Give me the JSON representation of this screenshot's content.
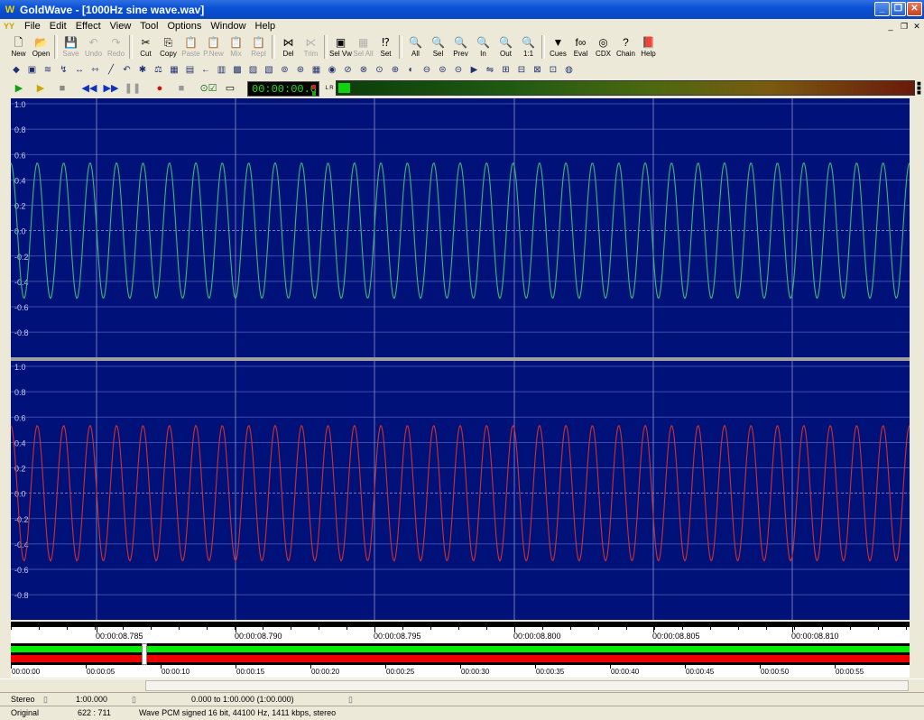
{
  "window": {
    "app_name": "GoldWave",
    "title": "GoldWave - [1000Hz sine wave.wav]",
    "minimize_label": "_",
    "restore_label": "❐",
    "close_label": "✕"
  },
  "menu": [
    "File",
    "Edit",
    "Effect",
    "View",
    "Tool",
    "Options",
    "Window",
    "Help"
  ],
  "toolbar": {
    "buttons": [
      {
        "label": "New",
        "icon": "new-icon",
        "glyph": "🗋",
        "enabled": true
      },
      {
        "label": "Open",
        "icon": "open-icon",
        "glyph": "📂",
        "enabled": true
      },
      {
        "label": "Save",
        "icon": "save-icon",
        "glyph": "💾",
        "enabled": false
      },
      {
        "label": "Undo",
        "icon": "undo-icon",
        "glyph": "↶",
        "enabled": false
      },
      {
        "label": "Redo",
        "icon": "redo-icon",
        "glyph": "↷",
        "enabled": false
      },
      {
        "label": "Cut",
        "icon": "cut-icon",
        "glyph": "✂",
        "enabled": true
      },
      {
        "label": "Copy",
        "icon": "copy-icon",
        "glyph": "⎘",
        "enabled": true
      },
      {
        "label": "Paste",
        "icon": "paste-icon",
        "glyph": "📋",
        "enabled": false
      },
      {
        "label": "P.New",
        "icon": "paste-new-icon",
        "glyph": "📋",
        "enabled": false
      },
      {
        "label": "Mix",
        "icon": "mix-icon",
        "glyph": "📋",
        "enabled": false
      },
      {
        "label": "Repl",
        "icon": "replace-icon",
        "glyph": "📋",
        "enabled": false
      },
      {
        "label": "Del",
        "icon": "delete-icon",
        "glyph": "⋈",
        "enabled": true
      },
      {
        "label": "Trim",
        "icon": "trim-icon",
        "glyph": "⋉",
        "enabled": false
      },
      {
        "label": "Sel Vw",
        "icon": "select-view-icon",
        "glyph": "▣",
        "enabled": true
      },
      {
        "label": "Sel All",
        "icon": "select-all-icon",
        "glyph": "▦",
        "enabled": false
      },
      {
        "label": "Set",
        "icon": "set-icon",
        "glyph": "⁉",
        "enabled": true
      },
      {
        "label": "All",
        "icon": "zoom-all-icon",
        "glyph": "🔍",
        "enabled": true
      },
      {
        "label": "Sel",
        "icon": "zoom-sel-icon",
        "glyph": "🔍",
        "enabled": true
      },
      {
        "label": "Prev",
        "icon": "zoom-prev-icon",
        "glyph": "🔍",
        "enabled": true
      },
      {
        "label": "In",
        "icon": "zoom-in-icon",
        "glyph": "🔍",
        "enabled": true
      },
      {
        "label": "Out",
        "icon": "zoom-out-icon",
        "glyph": "🔍",
        "enabled": true
      },
      {
        "label": "1:1",
        "icon": "zoom-1to1-icon",
        "glyph": "🔍",
        "enabled": true
      },
      {
        "label": "Cues",
        "icon": "cues-icon",
        "glyph": "▼",
        "enabled": true
      },
      {
        "label": "Eval",
        "icon": "eval-icon",
        "glyph": "f∞",
        "enabled": true
      },
      {
        "label": "CDX",
        "icon": "cd-icon",
        "glyph": "◎",
        "enabled": true
      },
      {
        "label": "Chain",
        "icon": "chain-icon",
        "glyph": "?",
        "enabled": true
      },
      {
        "label": "Help",
        "icon": "help-book-icon",
        "glyph": "📕",
        "enabled": true
      }
    ]
  },
  "effects_toolbar": [
    "effect-1-icon",
    "effect-2-icon",
    "effect-3-icon",
    "effect-4-icon",
    "effect-5-icon",
    "effect-6-icon",
    "effect-7-icon",
    "effect-8-icon",
    "effect-9-icon",
    "effect-10-icon",
    "effect-11-icon",
    "effect-12-icon",
    "effect-13-icon",
    "effect-14-icon",
    "effect-15-icon",
    "effect-16-icon",
    "effect-17-icon",
    "effect-18-icon",
    "effect-19-icon",
    "effect-20-icon",
    "effect-21-icon",
    "effect-22-icon",
    "effect-23-icon",
    "effect-24-icon",
    "effect-25-icon",
    "effect-26-icon",
    "effect-27-icon",
    "effect-28-icon",
    "effect-29-icon",
    "effect-30-icon",
    "effect-31-icon",
    "effect-32-icon",
    "effect-33-icon",
    "effect-34-icon",
    "effect-35-icon",
    "effect-36-icon"
  ],
  "control": {
    "time_display": "00:00:00.0",
    "meter_channels": "L R",
    "meter_level": 0.02
  },
  "waveform": {
    "background": "#00127a",
    "left_color": "#3cb878",
    "right_color": "#d03030",
    "amplitude": 0.55,
    "cycles_visible": 34,
    "y_labels": [
      "1.0",
      "0.8",
      "0.6",
      "0.4",
      "0.2",
      "0.0",
      "-0.2",
      "-0.4",
      "-0.6",
      "-0.8"
    ]
  },
  "timeline": {
    "labels": [
      "00:00:08.785",
      "00:00:08.790",
      "00:00:08.795",
      "00:00:08.800",
      "00:00:08.805",
      "00:00:08.810"
    ]
  },
  "overview": {
    "labels": [
      "00:00:00",
      "00:00:05",
      "00:00:10",
      "00:00:15",
      "00:00:20",
      "00:00:25",
      "00:00:30",
      "00:00:35",
      "00:00:40",
      "00:00:45",
      "00:00:50",
      "00:00:55"
    ],
    "colors": {
      "left": "#00ee00",
      "right": "#ee0000"
    }
  },
  "status": {
    "channels": "Stereo",
    "length": "1:00.000",
    "selection": "0.000 to 1:00.000 (1:00.000)",
    "mode": "Original",
    "zoom": "622 : 711",
    "format": "Wave PCM signed 16 bit, 44100 Hz, 1411 kbps, stereo"
  }
}
